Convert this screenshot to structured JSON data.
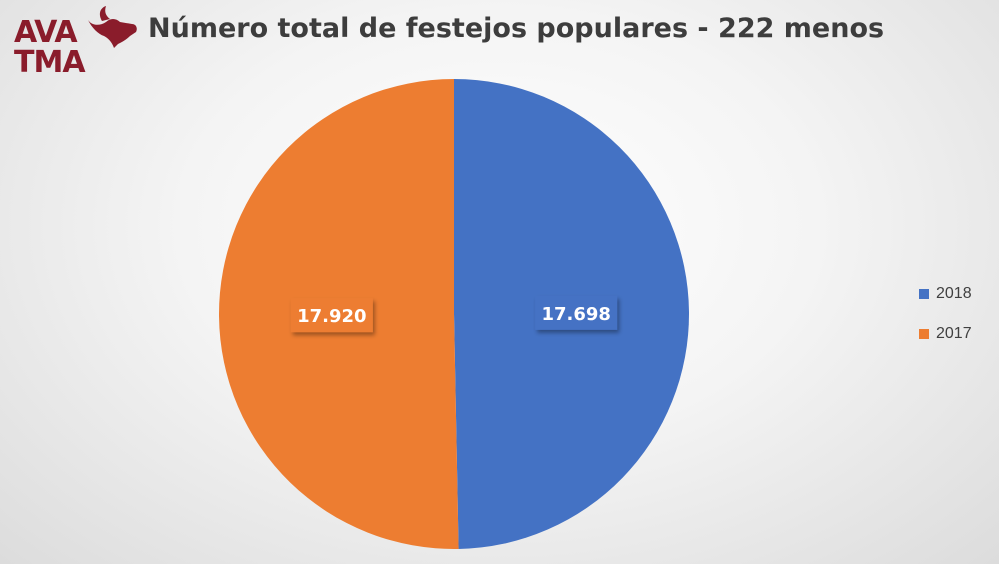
{
  "logo": {
    "line1": "AVA",
    "line2": "TMA",
    "color": "#8a1c2b",
    "icon": "bull-head-icon"
  },
  "chart_data": {
    "type": "pie",
    "title": "Número total de festejos populares - 222 menos",
    "slices": [
      {
        "label": "2018",
        "value": 17698,
        "display": "17.698",
        "color": "#4472c4"
      },
      {
        "label": "2017",
        "value": 17920,
        "display": "17.920",
        "color": "#ed7d31"
      }
    ],
    "legend_position": "right"
  }
}
